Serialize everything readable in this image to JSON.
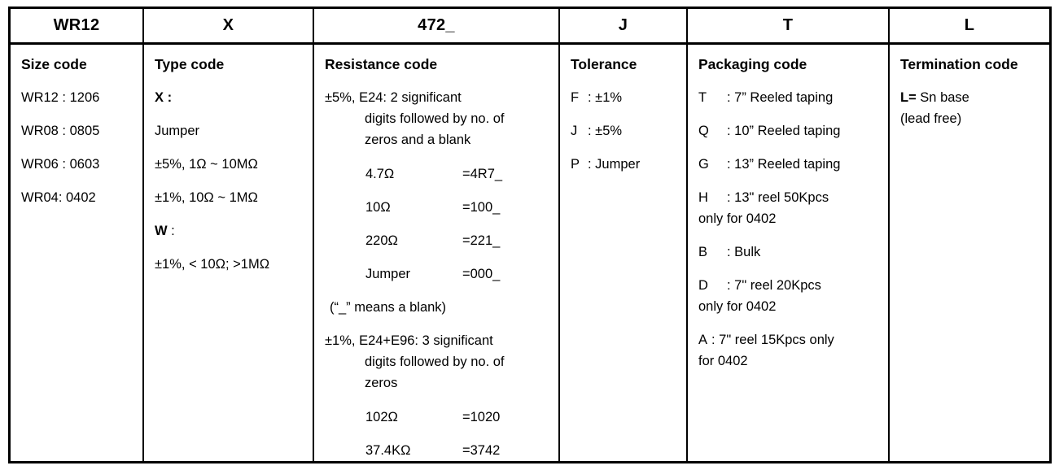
{
  "part_header": {
    "size": "WR12",
    "type": "X",
    "resistance": "472_",
    "tolerance": "J",
    "packaging": "T",
    "termination": "L"
  },
  "size_code": {
    "title": "Size code",
    "items": [
      "WR12 : 1206",
      "WR08 : 0805",
      "WR06 : 0603",
      "WR04: 0402"
    ]
  },
  "type_code": {
    "title": "Type code",
    "x_label": "X :",
    "x_jumper": "Jumper",
    "x_range_5pct": "±5%, 1Ω ~ 10MΩ",
    "x_range_1pct": "±1%, 10Ω ~ 1MΩ",
    "w_label": "W",
    "w_colon": " :",
    "w_range": "±1%, < 10Ω; >1MΩ"
  },
  "resistance_code": {
    "title": "Resistance code",
    "e24_note_lines": [
      "±5%, E24: 2 significant",
      "digits followed by no. of",
      "zeros and a blank"
    ],
    "e24_examples": [
      {
        "value": "4.7Ω",
        "code": "=4R7_"
      },
      {
        "value": "10Ω",
        "code": "=100_"
      },
      {
        "value": "220Ω",
        "code": "=221_"
      },
      {
        "value": "Jumper",
        "code": "=000_"
      }
    ],
    "blank_note": "(“_” means a blank)",
    "e96_note_lines": [
      "±1%, E24+E96: 3 significant",
      "digits followed by no. of",
      "zeros"
    ],
    "e96_examples": [
      {
        "value": "102Ω",
        "code": "=1020"
      },
      {
        "value": "37.4KΩ",
        "code": "=3742"
      }
    ]
  },
  "tolerance": {
    "title": "Tolerance",
    "items": [
      {
        "code": "F",
        "desc": ": ±1%"
      },
      {
        "code": "J",
        "desc": ": ±5%"
      },
      {
        "code": "P",
        "desc": ": Jumper"
      }
    ]
  },
  "packaging": {
    "title": "Packaging code",
    "items": [
      {
        "code": "T",
        "desc": ": 7” Reeled taping"
      },
      {
        "code": "Q",
        "desc": ": 10” Reeled taping"
      },
      {
        "code": "G",
        "desc": ": 13” Reeled taping"
      },
      {
        "code": "H",
        "desc": ": 13\" reel 50Kpcs",
        "desc2": "only for 0402"
      },
      {
        "code": "B",
        "desc": ": Bulk"
      },
      {
        "code": "D",
        "desc": ": 7\" reel 20Kpcs",
        "desc2": "only for 0402"
      },
      {
        "code": "A",
        "desc": ": 7\" reel 15Kpcs only",
        "desc2": "for 0402"
      }
    ]
  },
  "termination": {
    "title": "Termination code",
    "lead_bold": "L=",
    "lead_rest": " Sn base",
    "line2": "(lead free)"
  }
}
